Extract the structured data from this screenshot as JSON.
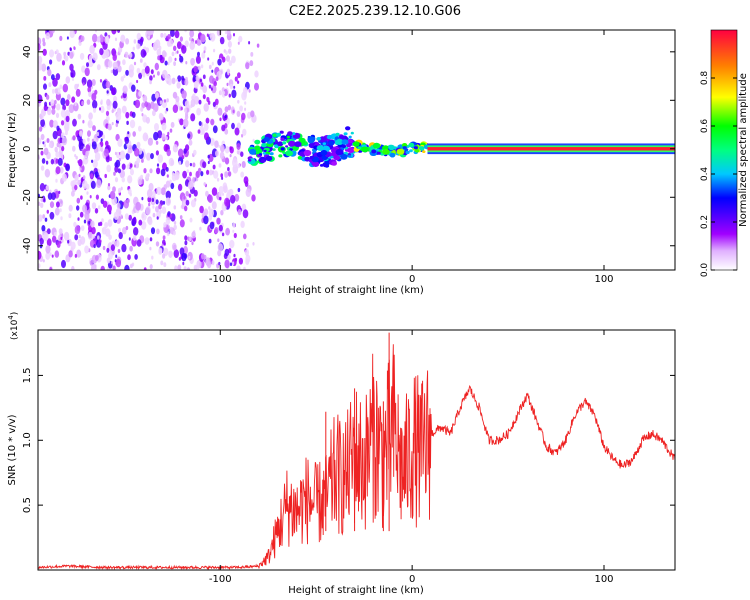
{
  "title": "C2E2.2025.239.12.10.G06",
  "chart_data": [
    {
      "type": "heatmap",
      "xlabel": "Height of straight line (km)",
      "ylabel": "Frequency (Hz)",
      "xlim": [
        -195,
        137
      ],
      "ylim": [
        -50,
        49
      ],
      "x_ticks": [
        -100,
        0,
        100
      ],
      "x_tick_labels": [
        "-100",
        "0",
        "100"
      ],
      "y_ticks": [
        -40,
        -20,
        0,
        20,
        40
      ],
      "y_tick_labels": [
        "-40",
        "-20",
        "0",
        "20",
        "40"
      ],
      "noise_region_x": [
        -195,
        -80
      ],
      "signal_segments": [
        {
          "x0": -85,
          "x1": -55,
          "freq": 0,
          "spread": 5,
          "amp": 0.45
        },
        {
          "x0": -55,
          "x1": -30,
          "freq": 1,
          "spread": 6,
          "amp": 0.35
        },
        {
          "x0": -30,
          "x1": 8,
          "freq": 0,
          "spread": 2,
          "amp": 0.6
        },
        {
          "x0": 8,
          "x1": 137,
          "freq": 0,
          "spread": 1,
          "amp": 0.95
        }
      ],
      "colorbar": {
        "label": "Normalized spectral amplitude",
        "range": [
          0,
          1
        ],
        "ticks": [
          0.0,
          0.2,
          0.4,
          0.6,
          0.8
        ],
        "tick_labels": [
          "0.0",
          "0.2",
          "0.4",
          "0.6",
          "0.8"
        ],
        "colors": [
          "#ffffff",
          "#a000ff",
          "#0000ff",
          "#00c8ff",
          "#00ff00",
          "#ffff00",
          "#ff8000",
          "#ff0000"
        ]
      }
    },
    {
      "type": "line",
      "xlabel": "Height of straight line (km)",
      "ylabel": "SNR (10 * v/v)",
      "y_multiplier": "(x10",
      "y_multiplier_exp": "4",
      "y_multiplier_close": ")",
      "xlim": [
        -195,
        137
      ],
      "ylim": [
        0,
        1.85
      ],
      "x_ticks": [
        -100,
        0,
        100
      ],
      "x_tick_labels": [
        "-100",
        "0",
        "100"
      ],
      "y_ticks": [
        0.5,
        1.0,
        1.5
      ],
      "y_tick_labels": [
        "0.5",
        "1.0",
        "1.5"
      ],
      "color": "#ee2222",
      "series": [
        {
          "name": "SNR",
          "x": [
            -195,
            -180,
            -160,
            -140,
            -120,
            -100,
            -90,
            -80,
            -75,
            -70,
            -65,
            -60,
            -55,
            -50,
            -45,
            -40,
            -35,
            -30,
            -25,
            -20,
            -15,
            -10,
            -5,
            0,
            5,
            10,
            15,
            20,
            25,
            30,
            35,
            40,
            45,
            50,
            55,
            60,
            65,
            70,
            75,
            80,
            85,
            90,
            95,
            100,
            105,
            110,
            115,
            120,
            125,
            130,
            137
          ],
          "y": [
            0.02,
            0.03,
            0.02,
            0.02,
            0.02,
            0.02,
            0.02,
            0.03,
            0.1,
            0.3,
            0.5,
            0.45,
            0.55,
            0.5,
            0.55,
            0.75,
            0.7,
            0.9,
            0.8,
            1.05,
            0.85,
            1.1,
            0.75,
            0.95,
            0.9,
            1.05,
            1.1,
            1.05,
            1.25,
            1.4,
            1.25,
            1.0,
            1.0,
            1.05,
            1.2,
            1.35,
            1.15,
            0.95,
            0.9,
            1.0,
            1.2,
            1.3,
            1.2,
            0.95,
            0.85,
            0.8,
            0.85,
            1.0,
            1.05,
            1.0,
            0.85
          ]
        }
      ],
      "spikes": [
        {
          "x": -12,
          "y": 1.83
        },
        {
          "x": -30,
          "y": 1.4
        },
        {
          "x": -15,
          "y": 1.3
        },
        {
          "x": -45,
          "y": 1.22
        }
      ]
    }
  ]
}
